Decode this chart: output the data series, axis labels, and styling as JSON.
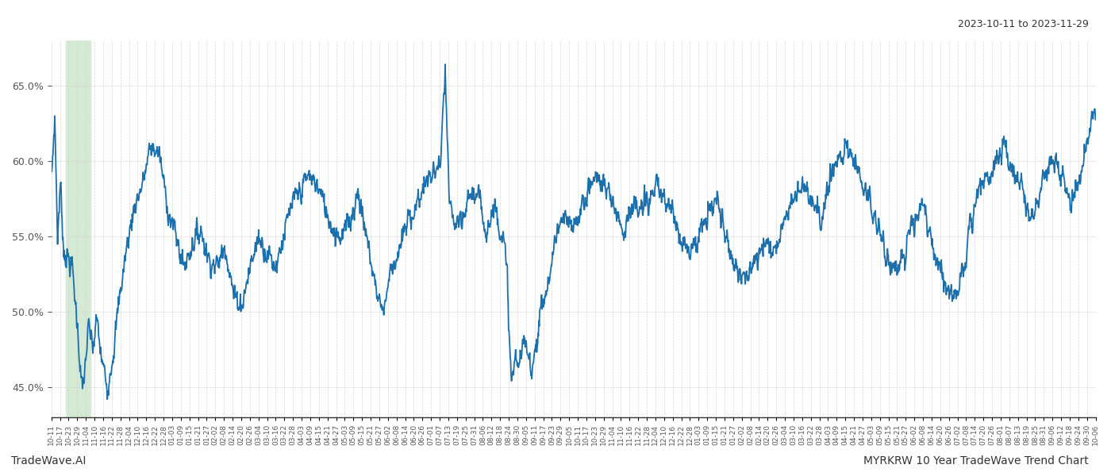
{
  "title_top_right": "2023-10-11 to 2023-11-29",
  "title_bottom_left": "TradeWave.AI",
  "title_bottom_right": "MYRKRW 10 Year TradeWave Trend Chart",
  "line_color": "#1a6fad",
  "line_width": 1.3,
  "background_color": "#ffffff",
  "grid_color": "#cccccc",
  "highlight_color": "#d5ead5",
  "ylim": [
    43.0,
    68.0
  ],
  "yticks": [
    45.0,
    50.0,
    55.0,
    60.0,
    65.0
  ],
  "xtick_labels": [
    "10-11",
    "10-17",
    "10-23",
    "10-29",
    "11-04",
    "11-10",
    "11-16",
    "11-22",
    "11-28",
    "12-04",
    "12-10",
    "12-16",
    "12-22",
    "12-28",
    "01-03",
    "01-09",
    "01-15",
    "01-21",
    "01-27",
    "02-02",
    "02-08",
    "02-14",
    "02-20",
    "02-26",
    "03-04",
    "03-10",
    "03-16",
    "03-22",
    "03-28",
    "04-03",
    "04-09",
    "04-15",
    "04-21",
    "04-27",
    "05-03",
    "05-09",
    "05-15",
    "05-21",
    "05-27",
    "06-02",
    "06-08",
    "06-14",
    "06-20",
    "06-26",
    "07-01",
    "07-07",
    "07-13",
    "07-19",
    "07-25",
    "07-31",
    "08-06",
    "08-12",
    "08-18",
    "08-24",
    "08-30",
    "09-05",
    "09-11",
    "09-17",
    "09-23",
    "09-29",
    "10-05",
    "10-11",
    "10-17",
    "10-23",
    "10-29",
    "11-04",
    "11-10",
    "11-16",
    "11-22",
    "11-28",
    "12-04",
    "12-10",
    "12-16",
    "12-22",
    "12-28",
    "01-03",
    "01-09",
    "01-15",
    "01-21",
    "01-27",
    "02-02",
    "02-08",
    "02-14",
    "02-20",
    "02-26",
    "03-04",
    "03-10",
    "03-16",
    "03-22",
    "03-28",
    "04-03",
    "04-09",
    "04-15",
    "04-21",
    "04-27",
    "05-03",
    "05-09",
    "05-15",
    "05-21",
    "05-27",
    "06-02",
    "06-08",
    "06-14",
    "06-20",
    "06-26",
    "07-02",
    "07-08",
    "07-14",
    "07-20",
    "07-26",
    "08-01",
    "08-07",
    "08-13",
    "08-19",
    "08-25",
    "08-31",
    "09-06",
    "09-12",
    "09-18",
    "09-24",
    "09-30",
    "10-06"
  ]
}
